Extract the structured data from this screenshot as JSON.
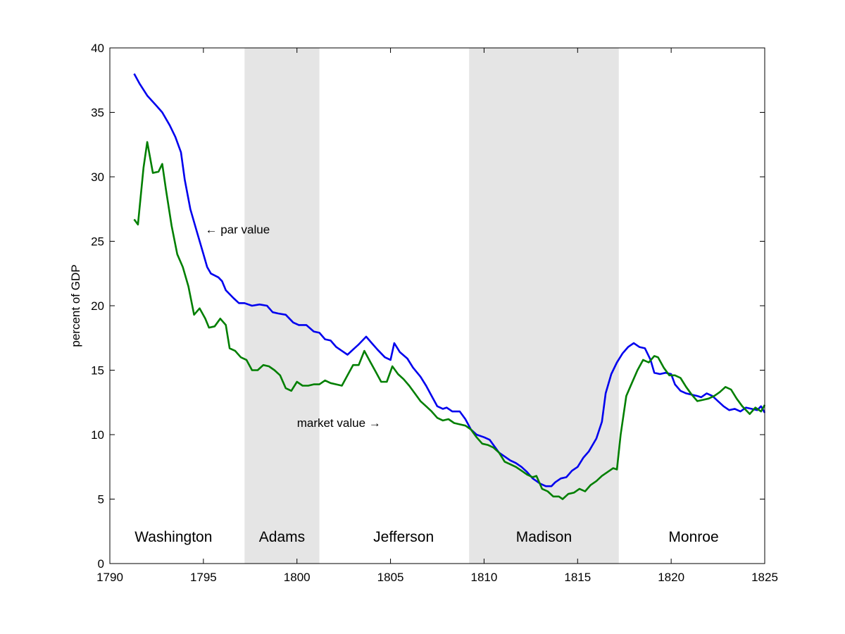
{
  "chart_data": {
    "type": "line",
    "ylabel": "percent of GDP",
    "xlabel": "",
    "xlim": [
      1790,
      1825
    ],
    "ylim": [
      0,
      40
    ],
    "x_ticks": [
      1790,
      1795,
      1800,
      1805,
      1810,
      1815,
      1820,
      1825
    ],
    "y_ticks": [
      0,
      5,
      10,
      15,
      20,
      25,
      30,
      35,
      40
    ],
    "grid": false,
    "shaded_bands": [
      {
        "label": "Adams",
        "from": 1797.2,
        "to": 1801.2,
        "color": "#e5e5e5"
      },
      {
        "label": "Madison",
        "from": 1809.2,
        "to": 1817.2,
        "color": "#e5e5e5"
      }
    ],
    "period_labels": [
      {
        "label": "Washington",
        "x": 1793.4,
        "y": 1.7
      },
      {
        "label": "Adams",
        "x": 1799.2,
        "y": 1.7
      },
      {
        "label": "Jefferson",
        "x": 1805.7,
        "y": 1.7
      },
      {
        "label": "Madison",
        "x": 1813.2,
        "y": 1.7
      },
      {
        "label": "Monroe",
        "x": 1821.2,
        "y": 1.7
      }
    ],
    "annotations": [
      {
        "text": "← par value",
        "x": 1795.1,
        "y": 25.6
      },
      {
        "text": "market value →",
        "x": 1800.0,
        "y": 10.6
      }
    ],
    "series": [
      {
        "color": "#0000ee",
        "points": [
          [
            1791.3,
            38.0
          ],
          [
            1791.6,
            37.2
          ],
          [
            1792.0,
            36.3
          ],
          [
            1792.5,
            35.5
          ],
          [
            1792.8,
            35.0
          ],
          [
            1793.2,
            34.0
          ],
          [
            1793.5,
            33.1
          ],
          [
            1793.8,
            31.9
          ],
          [
            1794.0,
            29.8
          ],
          [
            1794.3,
            27.5
          ],
          [
            1794.6,
            26.0
          ],
          [
            1795.0,
            24.0
          ],
          [
            1795.2,
            23.0
          ],
          [
            1795.4,
            22.5
          ],
          [
            1795.8,
            22.2
          ],
          [
            1796.0,
            21.9
          ],
          [
            1796.2,
            21.2
          ],
          [
            1796.6,
            20.6
          ],
          [
            1796.9,
            20.2
          ],
          [
            1797.2,
            20.2
          ],
          [
            1797.6,
            20.0
          ],
          [
            1798.0,
            20.1
          ],
          [
            1798.4,
            20.0
          ],
          [
            1798.7,
            19.5
          ],
          [
            1799.0,
            19.4
          ],
          [
            1799.4,
            19.3
          ],
          [
            1799.8,
            18.7
          ],
          [
            1800.1,
            18.5
          ],
          [
            1800.5,
            18.5
          ],
          [
            1800.9,
            18.0
          ],
          [
            1801.2,
            17.9
          ],
          [
            1801.5,
            17.4
          ],
          [
            1801.8,
            17.3
          ],
          [
            1802.1,
            16.8
          ],
          [
            1802.4,
            16.5
          ],
          [
            1802.7,
            16.2
          ],
          [
            1803.0,
            16.6
          ],
          [
            1803.3,
            17.0
          ],
          [
            1803.7,
            17.6
          ],
          [
            1804.0,
            17.1
          ],
          [
            1804.3,
            16.6
          ],
          [
            1804.7,
            16.0
          ],
          [
            1805.0,
            15.8
          ],
          [
            1805.2,
            17.1
          ],
          [
            1805.5,
            16.4
          ],
          [
            1805.9,
            15.9
          ],
          [
            1806.2,
            15.2
          ],
          [
            1806.6,
            14.5
          ],
          [
            1806.9,
            13.8
          ],
          [
            1807.2,
            13.0
          ],
          [
            1807.5,
            12.2
          ],
          [
            1807.8,
            12.0
          ],
          [
            1808.0,
            12.1
          ],
          [
            1808.3,
            11.8
          ],
          [
            1808.7,
            11.8
          ],
          [
            1809.0,
            11.2
          ],
          [
            1809.3,
            10.4
          ],
          [
            1809.6,
            10.0
          ],
          [
            1810.0,
            9.8
          ],
          [
            1810.3,
            9.6
          ],
          [
            1810.5,
            9.2
          ],
          [
            1810.8,
            8.6
          ],
          [
            1811.1,
            8.3
          ],
          [
            1811.4,
            8.0
          ],
          [
            1811.7,
            7.8
          ],
          [
            1812.0,
            7.5
          ],
          [
            1812.3,
            7.1
          ],
          [
            1812.6,
            6.6
          ],
          [
            1813.0,
            6.2
          ],
          [
            1813.3,
            6.0
          ],
          [
            1813.6,
            6.0
          ],
          [
            1813.8,
            6.3
          ],
          [
            1814.1,
            6.6
          ],
          [
            1814.4,
            6.7
          ],
          [
            1814.7,
            7.2
          ],
          [
            1815.0,
            7.5
          ],
          [
            1815.3,
            8.2
          ],
          [
            1815.6,
            8.7
          ],
          [
            1816.0,
            9.7
          ],
          [
            1816.3,
            11.0
          ],
          [
            1816.5,
            13.2
          ],
          [
            1816.8,
            14.7
          ],
          [
            1817.1,
            15.6
          ],
          [
            1817.4,
            16.3
          ],
          [
            1817.7,
            16.8
          ],
          [
            1818.0,
            17.1
          ],
          [
            1818.3,
            16.8
          ],
          [
            1818.6,
            16.7
          ],
          [
            1818.9,
            15.8
          ],
          [
            1819.1,
            14.8
          ],
          [
            1819.4,
            14.7
          ],
          [
            1819.7,
            14.8
          ],
          [
            1820.0,
            14.7
          ],
          [
            1820.2,
            13.9
          ],
          [
            1820.5,
            13.4
          ],
          [
            1820.8,
            13.2
          ],
          [
            1821.1,
            13.1
          ],
          [
            1821.4,
            13.0
          ],
          [
            1821.6,
            12.9
          ],
          [
            1821.9,
            13.2
          ],
          [
            1822.2,
            13.0
          ],
          [
            1822.5,
            12.6
          ],
          [
            1822.8,
            12.2
          ],
          [
            1823.1,
            11.9
          ],
          [
            1823.4,
            12.0
          ],
          [
            1823.7,
            11.8
          ],
          [
            1824.0,
            12.1
          ],
          [
            1824.3,
            12.0
          ],
          [
            1824.6,
            11.9
          ],
          [
            1824.8,
            12.2
          ],
          [
            1825.0,
            11.7
          ]
        ]
      },
      {
        "color": "#007f00",
        "points": [
          [
            1791.3,
            26.7
          ],
          [
            1791.5,
            26.3
          ],
          [
            1791.8,
            30.7
          ],
          [
            1792.0,
            32.7
          ],
          [
            1792.3,
            30.3
          ],
          [
            1792.6,
            30.4
          ],
          [
            1792.8,
            31.0
          ],
          [
            1793.0,
            29.0
          ],
          [
            1793.3,
            26.2
          ],
          [
            1793.6,
            24.0
          ],
          [
            1793.9,
            23.0
          ],
          [
            1794.2,
            21.5
          ],
          [
            1794.5,
            19.3
          ],
          [
            1794.8,
            19.8
          ],
          [
            1795.1,
            19.0
          ],
          [
            1795.3,
            18.3
          ],
          [
            1795.6,
            18.4
          ],
          [
            1795.9,
            19.0
          ],
          [
            1796.2,
            18.5
          ],
          [
            1796.4,
            16.7
          ],
          [
            1796.7,
            16.5
          ],
          [
            1797.0,
            16.0
          ],
          [
            1797.3,
            15.8
          ],
          [
            1797.6,
            15.0
          ],
          [
            1797.9,
            15.0
          ],
          [
            1798.2,
            15.4
          ],
          [
            1798.5,
            15.3
          ],
          [
            1798.8,
            15.0
          ],
          [
            1799.1,
            14.6
          ],
          [
            1799.4,
            13.6
          ],
          [
            1799.7,
            13.4
          ],
          [
            1800.0,
            14.1
          ],
          [
            1800.3,
            13.8
          ],
          [
            1800.6,
            13.8
          ],
          [
            1800.9,
            13.9
          ],
          [
            1801.2,
            13.9
          ],
          [
            1801.5,
            14.2
          ],
          [
            1801.8,
            14.0
          ],
          [
            1802.1,
            13.9
          ],
          [
            1802.4,
            13.8
          ],
          [
            1802.7,
            14.6
          ],
          [
            1803.0,
            15.4
          ],
          [
            1803.3,
            15.4
          ],
          [
            1803.6,
            16.5
          ],
          [
            1803.9,
            15.7
          ],
          [
            1804.2,
            14.9
          ],
          [
            1804.5,
            14.1
          ],
          [
            1804.8,
            14.1
          ],
          [
            1805.1,
            15.3
          ],
          [
            1805.4,
            14.7
          ],
          [
            1805.7,
            14.3
          ],
          [
            1806.0,
            13.8
          ],
          [
            1806.3,
            13.2
          ],
          [
            1806.6,
            12.6
          ],
          [
            1806.9,
            12.2
          ],
          [
            1807.2,
            11.8
          ],
          [
            1807.5,
            11.3
          ],
          [
            1807.8,
            11.1
          ],
          [
            1808.1,
            11.2
          ],
          [
            1808.4,
            10.9
          ],
          [
            1808.7,
            10.8
          ],
          [
            1809.0,
            10.7
          ],
          [
            1809.3,
            10.4
          ],
          [
            1809.6,
            9.8
          ],
          [
            1809.9,
            9.3
          ],
          [
            1810.2,
            9.2
          ],
          [
            1810.5,
            9.0
          ],
          [
            1810.8,
            8.6
          ],
          [
            1811.1,
            7.9
          ],
          [
            1811.4,
            7.7
          ],
          [
            1811.7,
            7.5
          ],
          [
            1812.0,
            7.2
          ],
          [
            1812.3,
            6.9
          ],
          [
            1812.6,
            6.7
          ],
          [
            1812.8,
            6.8
          ],
          [
            1813.1,
            5.8
          ],
          [
            1813.4,
            5.6
          ],
          [
            1813.7,
            5.2
          ],
          [
            1814.0,
            5.2
          ],
          [
            1814.2,
            5.0
          ],
          [
            1814.5,
            5.4
          ],
          [
            1814.8,
            5.5
          ],
          [
            1815.1,
            5.8
          ],
          [
            1815.4,
            5.6
          ],
          [
            1815.7,
            6.1
          ],
          [
            1816.0,
            6.4
          ],
          [
            1816.3,
            6.8
          ],
          [
            1816.6,
            7.1
          ],
          [
            1816.9,
            7.4
          ],
          [
            1817.1,
            7.3
          ],
          [
            1817.3,
            10.0
          ],
          [
            1817.6,
            13.0
          ],
          [
            1817.9,
            14.0
          ],
          [
            1818.2,
            15.0
          ],
          [
            1818.5,
            15.8
          ],
          [
            1818.8,
            15.6
          ],
          [
            1819.1,
            16.1
          ],
          [
            1819.3,
            16.0
          ],
          [
            1819.6,
            15.2
          ],
          [
            1819.9,
            14.6
          ],
          [
            1820.2,
            14.6
          ],
          [
            1820.5,
            14.4
          ],
          [
            1820.8,
            13.7
          ],
          [
            1821.1,
            13.1
          ],
          [
            1821.4,
            12.6
          ],
          [
            1821.7,
            12.7
          ],
          [
            1822.0,
            12.8
          ],
          [
            1822.3,
            13.0
          ],
          [
            1822.6,
            13.3
          ],
          [
            1822.9,
            13.7
          ],
          [
            1823.2,
            13.5
          ],
          [
            1823.5,
            12.8
          ],
          [
            1823.8,
            12.2
          ],
          [
            1824.0,
            11.9
          ],
          [
            1824.2,
            11.6
          ],
          [
            1824.5,
            12.1
          ],
          [
            1824.8,
            11.8
          ],
          [
            1825.0,
            12.3
          ]
        ]
      }
    ]
  }
}
